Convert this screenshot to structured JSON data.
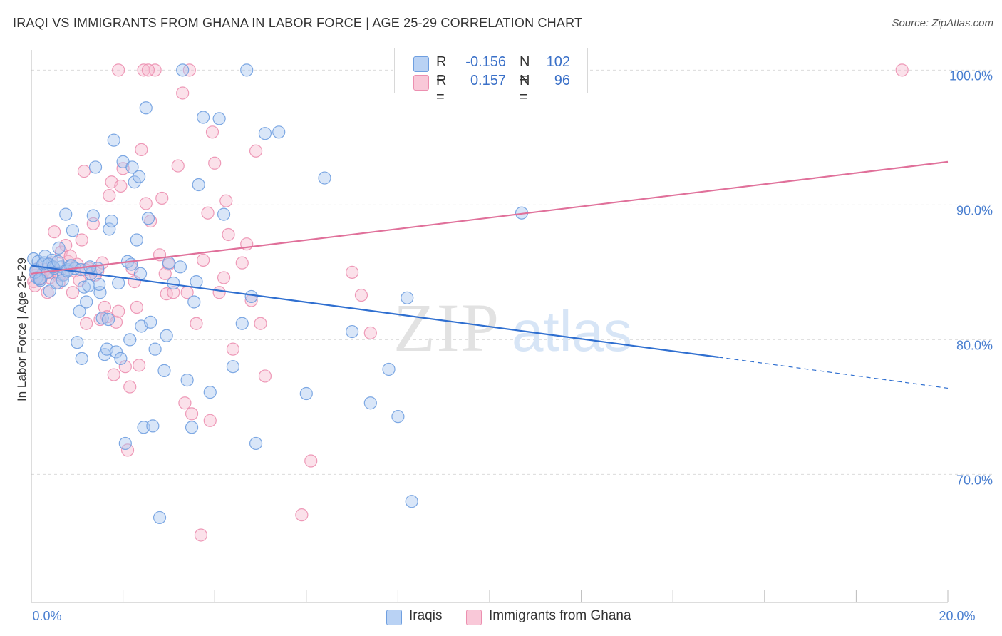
{
  "title": "IRAQI VS IMMIGRANTS FROM GHANA IN LABOR FORCE | AGE 25-29 CORRELATION CHART",
  "source": "Source: ZipAtlas.com",
  "watermark": {
    "zip": "ZIP",
    "atlas": "atlas"
  },
  "colors": {
    "blue_fill": "#aac8f0",
    "blue_stroke": "#6f9fe0",
    "blue_line": "#2f6fd0",
    "pink_fill": "#f6bdd0",
    "pink_stroke": "#ec8fb0",
    "pink_line": "#e0709a",
    "axis_text": "#4a7fd0",
    "grid": "#dcdcdc"
  },
  "legend": {
    "r_label": "R =",
    "n_label": "N =",
    "rows": [
      {
        "r": "-0.156",
        "n": "102",
        "series": "iraqis"
      },
      {
        "r": "0.157",
        "n": "96",
        "series": "ghana"
      }
    ]
  },
  "bottom_legend": [
    "Iraqis",
    "Immigrants from Ghana"
  ],
  "chart_data": {
    "type": "scatter",
    "title": "IRAQI VS IMMIGRANTS FROM GHANA IN LABOR FORCE | AGE 25-29 CORRELATION CHART",
    "xlabel": "",
    "ylabel": "In Labor Force | Age 25-29",
    "xlim": [
      0,
      20
    ],
    "ylim": [
      60.5,
      101.5
    ],
    "x_ticks": [
      0,
      20
    ],
    "x_tick_labels": [
      "0.0%",
      "20.0%"
    ],
    "y_ticks": [
      70,
      80,
      90,
      100
    ],
    "y_tick_labels": [
      "70.0%",
      "80.0%",
      "90.0%",
      "100.0%"
    ],
    "grid": true,
    "series": [
      {
        "name": "Iraqis",
        "color": "#aac8f0",
        "trend": {
          "x0": 0,
          "y0": 85.5,
          "x1": 15.0,
          "y1": 78.7,
          "dashed_to_x": 20.0,
          "dashed_to_y": 76.4
        },
        "points": [
          [
            0.05,
            86.0
          ],
          [
            0.1,
            85.2
          ],
          [
            0.12,
            84.6
          ],
          [
            0.15,
            85.8
          ],
          [
            0.2,
            84.4
          ],
          [
            0.25,
            85.6
          ],
          [
            0.3,
            86.2
          ],
          [
            0.35,
            85.0
          ],
          [
            0.4,
            83.6
          ],
          [
            0.45,
            85.9
          ],
          [
            0.5,
            85.3
          ],
          [
            0.55,
            84.2
          ],
          [
            0.6,
            86.8
          ],
          [
            0.65,
            85.4
          ],
          [
            0.7,
            84.8
          ],
          [
            0.75,
            89.3
          ],
          [
            0.8,
            85.2
          ],
          [
            0.85,
            85.5
          ],
          [
            0.9,
            88.1
          ],
          [
            0.95,
            85.3
          ],
          [
            1.0,
            79.8
          ],
          [
            1.05,
            82.1
          ],
          [
            1.1,
            78.6
          ],
          [
            1.15,
            83.9
          ],
          [
            1.2,
            82.8
          ],
          [
            1.25,
            84.0
          ],
          [
            1.3,
            84.9
          ],
          [
            1.35,
            89.2
          ],
          [
            1.4,
            92.8
          ],
          [
            1.45,
            85.3
          ],
          [
            1.5,
            83.5
          ],
          [
            1.55,
            81.6
          ],
          [
            1.6,
            78.9
          ],
          [
            1.65,
            79.3
          ],
          [
            1.7,
            88.2
          ],
          [
            1.75,
            88.8
          ],
          [
            1.8,
            94.8
          ],
          [
            1.85,
            79.1
          ],
          [
            1.9,
            84.2
          ],
          [
            1.95,
            78.6
          ],
          [
            2.0,
            93.2
          ],
          [
            2.05,
            72.3
          ],
          [
            2.1,
            85.8
          ],
          [
            2.15,
            80.0
          ],
          [
            2.2,
            92.8
          ],
          [
            2.25,
            91.7
          ],
          [
            2.3,
            87.4
          ],
          [
            2.35,
            92.1
          ],
          [
            2.4,
            81.0
          ],
          [
            2.45,
            73.5
          ],
          [
            2.5,
            97.2
          ],
          [
            2.55,
            89.0
          ],
          [
            2.6,
            81.3
          ],
          [
            2.65,
            73.6
          ],
          [
            2.7,
            79.3
          ],
          [
            2.8,
            66.8
          ],
          [
            2.9,
            77.7
          ],
          [
            2.95,
            80.3
          ],
          [
            3.0,
            85.7
          ],
          [
            3.1,
            84.2
          ],
          [
            3.3,
            100.0
          ],
          [
            3.4,
            77.0
          ],
          [
            3.5,
            73.5
          ],
          [
            3.55,
            82.8
          ],
          [
            3.6,
            84.3
          ],
          [
            3.65,
            91.5
          ],
          [
            3.75,
            96.5
          ],
          [
            3.9,
            76.1
          ],
          [
            4.1,
            96.4
          ],
          [
            4.2,
            89.3
          ],
          [
            4.4,
            78.0
          ],
          [
            4.6,
            81.2
          ],
          [
            4.7,
            100.0
          ],
          [
            4.8,
            83.2
          ],
          [
            4.9,
            72.3
          ],
          [
            5.1,
            95.3
          ],
          [
            5.4,
            95.4
          ],
          [
            6.0,
            76.0
          ],
          [
            6.4,
            92.0
          ],
          [
            7.0,
            80.6
          ],
          [
            7.4,
            75.3
          ],
          [
            7.8,
            77.8
          ],
          [
            8.0,
            74.3
          ],
          [
            8.2,
            83.1
          ],
          [
            8.3,
            68.0
          ],
          [
            10.7,
            89.4
          ],
          [
            0.08,
            85.0
          ],
          [
            0.18,
            84.5
          ],
          [
            0.28,
            85.7
          ],
          [
            0.38,
            85.6
          ],
          [
            0.48,
            85.4
          ],
          [
            0.58,
            85.8
          ],
          [
            0.68,
            84.4
          ],
          [
            0.78,
            85.1
          ],
          [
            0.88,
            85.5
          ],
          [
            1.08,
            85.2
          ],
          [
            1.28,
            85.4
          ],
          [
            1.48,
            84.1
          ],
          [
            1.68,
            81.5
          ],
          [
            2.18,
            85.6
          ],
          [
            2.38,
            84.9
          ],
          [
            3.25,
            85.4
          ]
        ]
      },
      {
        "name": "Immigrants from Ghana",
        "color": "#f6bdd0",
        "trend": {
          "x0": 0,
          "y0": 84.9,
          "x1": 20.0,
          "y1": 93.2
        },
        "points": [
          [
            0.05,
            84.3
          ],
          [
            0.1,
            84.8
          ],
          [
            0.15,
            85.3
          ],
          [
            0.2,
            84.5
          ],
          [
            0.25,
            84.9
          ],
          [
            0.3,
            85.2
          ],
          [
            0.35,
            83.5
          ],
          [
            0.4,
            84.6
          ],
          [
            0.45,
            85.7
          ],
          [
            0.5,
            88.0
          ],
          [
            0.55,
            85.0
          ],
          [
            0.6,
            84.2
          ],
          [
            0.65,
            86.5
          ],
          [
            0.7,
            84.9
          ],
          [
            0.75,
            87.0
          ],
          [
            0.8,
            85.8
          ],
          [
            0.85,
            86.2
          ],
          [
            0.9,
            83.5
          ],
          [
            0.95,
            85.1
          ],
          [
            1.0,
            85.6
          ],
          [
            1.05,
            84.4
          ],
          [
            1.1,
            87.4
          ],
          [
            1.15,
            92.5
          ],
          [
            1.2,
            81.2
          ],
          [
            1.25,
            85.3
          ],
          [
            1.3,
            84.9
          ],
          [
            1.35,
            88.6
          ],
          [
            1.4,
            84.8
          ],
          [
            1.45,
            85.1
          ],
          [
            1.5,
            81.5
          ],
          [
            1.55,
            85.7
          ],
          [
            1.6,
            82.4
          ],
          [
            1.65,
            81.7
          ],
          [
            1.7,
            90.7
          ],
          [
            1.75,
            91.7
          ],
          [
            1.8,
            77.4
          ],
          [
            1.85,
            81.3
          ],
          [
            1.9,
            82.1
          ],
          [
            1.95,
            91.4
          ],
          [
            2.0,
            92.7
          ],
          [
            2.05,
            78.0
          ],
          [
            2.1,
            71.8
          ],
          [
            2.15,
            76.5
          ],
          [
            2.2,
            85.3
          ],
          [
            2.25,
            84.3
          ],
          [
            2.3,
            82.4
          ],
          [
            2.35,
            78.1
          ],
          [
            2.4,
            94.1
          ],
          [
            2.45,
            100.0
          ],
          [
            2.5,
            90.1
          ],
          [
            2.6,
            88.8
          ],
          [
            2.7,
            100.0
          ],
          [
            2.8,
            86.3
          ],
          [
            2.85,
            90.5
          ],
          [
            2.95,
            83.4
          ],
          [
            3.0,
            85.6
          ],
          [
            3.1,
            83.5
          ],
          [
            3.2,
            92.9
          ],
          [
            3.3,
            98.3
          ],
          [
            3.35,
            75.3
          ],
          [
            3.4,
            83.5
          ],
          [
            3.5,
            74.5
          ],
          [
            3.6,
            81.2
          ],
          [
            3.7,
            65.5
          ],
          [
            3.75,
            85.9
          ],
          [
            3.85,
            89.4
          ],
          [
            3.9,
            74.0
          ],
          [
            3.95,
            95.4
          ],
          [
            4.0,
            93.1
          ],
          [
            4.1,
            83.5
          ],
          [
            4.2,
            84.6
          ],
          [
            4.25,
            90.3
          ],
          [
            4.3,
            87.8
          ],
          [
            4.4,
            79.3
          ],
          [
            4.6,
            85.7
          ],
          [
            4.7,
            87.1
          ],
          [
            4.8,
            82.9
          ],
          [
            4.9,
            94.0
          ],
          [
            5.0,
            81.2
          ],
          [
            5.1,
            77.3
          ],
          [
            5.9,
            67.0
          ],
          [
            6.1,
            71.0
          ],
          [
            7.0,
            85.0
          ],
          [
            7.2,
            83.3
          ],
          [
            7.4,
            80.5
          ],
          [
            8.2,
            100.0
          ],
          [
            19.0,
            100.0
          ],
          [
            1.9,
            100.0
          ],
          [
            2.55,
            100.0
          ],
          [
            3.45,
            100.0
          ],
          [
            0.08,
            84.0
          ],
          [
            0.22,
            84.6
          ],
          [
            0.42,
            85.0
          ],
          [
            0.62,
            84.8
          ],
          [
            1.18,
            85.2
          ],
          [
            2.92,
            84.9
          ]
        ]
      }
    ]
  }
}
